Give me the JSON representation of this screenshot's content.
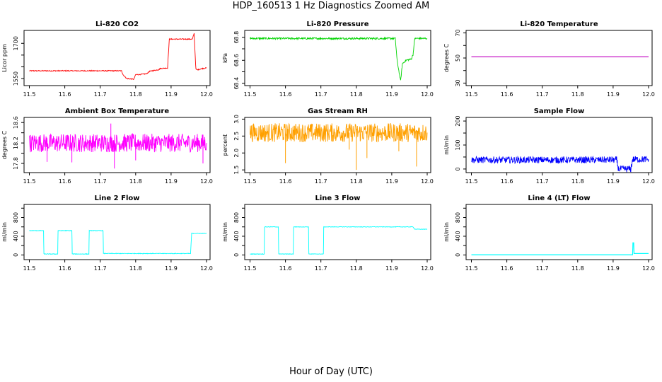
{
  "title": "HDP_160513  1 Hz Diagnostics Zoomed AM",
  "xlabel": "Hour of Day (UTC)",
  "chart_data": [
    {
      "type": "line",
      "title": "Li-820 CO2",
      "ylabel": "Licor ppm",
      "color": "#ff0000",
      "xlim": [
        11.485,
        12.01
      ],
      "ylim": [
        1520,
        1755
      ],
      "xticks": [
        11.5,
        11.6,
        11.7,
        11.8,
        11.9,
        12.0
      ],
      "xtick_labels": [
        "11.5",
        "11.6",
        "11.7",
        "11.8",
        "11.9",
        "12.0"
      ],
      "yticks": [
        1550,
        1600,
        1650,
        1700
      ],
      "ytick_labels": [
        "1550",
        "",
        "",
        "1700"
      ],
      "noise": 2,
      "series": [
        {
          "name": "CO2",
          "x": [
            11.5,
            11.76,
            11.765,
            11.775,
            11.795,
            11.8,
            11.81,
            11.83,
            11.84,
            11.865,
            11.87,
            11.89,
            11.895,
            11.96,
            11.965,
            11.97,
            11.975,
            11.985,
            12.0
          ],
          "y": [
            1583,
            1583,
            1565,
            1550,
            1547,
            1567,
            1567,
            1570,
            1581,
            1588,
            1593,
            1595,
            1718,
            1718,
            1742,
            1590,
            1587,
            1592,
            1595
          ]
        }
      ]
    },
    {
      "type": "line",
      "title": "Li-820 Pressure",
      "ylabel": "kPa",
      "color": "#00d400",
      "xlim": [
        11.485,
        12.01
      ],
      "ylim": [
        68.38,
        68.86
      ],
      "xticks": [
        11.5,
        11.6,
        11.7,
        11.8,
        11.9,
        12.0
      ],
      "xtick_labels": [
        "11.5",
        "11.6",
        "11.7",
        "11.8",
        "11.9",
        "12.0"
      ],
      "yticks": [
        68.4,
        68.6,
        68.8
      ],
      "ytick_labels": [
        "68.4",
        "68.6",
        "68.8"
      ],
      "minor_yticks": [
        68.5,
        68.7
      ],
      "noise": 0.008,
      "series": [
        {
          "name": "Pressure",
          "x": [
            11.5,
            11.91,
            11.915,
            11.925,
            11.93,
            11.94,
            11.955,
            11.96,
            11.965,
            12.0
          ],
          "y": [
            68.79,
            68.79,
            68.6,
            68.42,
            68.57,
            68.6,
            68.61,
            68.65,
            68.79,
            68.79
          ]
        }
      ]
    },
    {
      "type": "line",
      "title": "Li-820 Temperature",
      "ylabel": "degrees C",
      "color": "#c000c0",
      "xlim": [
        11.485,
        12.01
      ],
      "ylim": [
        28,
        72
      ],
      "xticks": [
        11.5,
        11.6,
        11.7,
        11.8,
        11.9,
        12.0
      ],
      "xtick_labels": [
        "11.5",
        "11.6",
        "11.7",
        "11.8",
        "11.9",
        "12.0"
      ],
      "yticks": [
        30,
        50,
        70
      ],
      "ytick_labels": [
        "30",
        "50",
        "70"
      ],
      "minor_yticks": [
        40,
        60
      ],
      "noise": 0,
      "series": [
        {
          "name": "Temperature",
          "x": [
            11.5,
            12.0
          ],
          "y": [
            51,
            51
          ]
        }
      ]
    },
    {
      "type": "line",
      "title": "Ambient Box Temperature",
      "ylabel": "degrees C",
      "color": "#ff00ff",
      "xlim": [
        11.485,
        12.01
      ],
      "ylim": [
        17.62,
        18.7
      ],
      "xticks": [
        11.5,
        11.6,
        11.7,
        11.8,
        11.9,
        12.0
      ],
      "xtick_labels": [
        "11.5",
        "11.6",
        "11.7",
        "11.8",
        "11.9",
        "12.0"
      ],
      "yticks": [
        17.8,
        18.2,
        18.6
      ],
      "ytick_labels": [
        "17.8",
        "18.2",
        "18.6"
      ],
      "minor_yticks": [
        18.0,
        18.4
      ],
      "noise": 0.18,
      "spikes": [
        [
          11.55,
          17.83
        ],
        [
          11.62,
          17.82
        ],
        [
          11.74,
          17.7
        ],
        [
          11.8,
          17.86
        ],
        [
          11.99,
          17.8
        ],
        [
          11.73,
          18.58
        ]
      ],
      "series": [
        {
          "name": "Box Temp",
          "x": [
            11.5,
            12.0
          ],
          "y": [
            18.2,
            18.2
          ]
        }
      ]
    },
    {
      "type": "line",
      "title": "Gas Stream RH",
      "ylabel": "percent",
      "color": "#ffa000",
      "xlim": [
        11.485,
        12.01
      ],
      "ylim": [
        1.42,
        3.05
      ],
      "xticks": [
        11.5,
        11.6,
        11.7,
        11.8,
        11.9,
        12.0
      ],
      "xtick_labels": [
        "11.5",
        "11.6",
        "11.7",
        "11.8",
        "11.9",
        "12.0"
      ],
      "yticks": [
        1.5,
        2.0,
        2.5,
        3.0
      ],
      "ytick_labels": [
        "1.5",
        "2.0",
        "2.5",
        "3.0"
      ],
      "noise": 0.28,
      "spikes": [
        [
          11.6,
          1.7
        ],
        [
          11.8,
          1.5
        ],
        [
          11.83,
          1.85
        ],
        [
          11.97,
          1.6
        ],
        [
          11.78,
          2.1
        ],
        [
          11.92,
          2.05
        ]
      ],
      "series": [
        {
          "name": "RH",
          "x": [
            11.5,
            12.0
          ],
          "y": [
            2.6,
            2.6
          ]
        }
      ]
    },
    {
      "type": "line",
      "title": "Sample Flow",
      "ylabel": "ml/min",
      "color": "#0000ff",
      "xlim": [
        11.485,
        12.01
      ],
      "ylim": [
        -15,
        215
      ],
      "xticks": [
        11.5,
        11.6,
        11.7,
        11.8,
        11.9,
        12.0
      ],
      "xtick_labels": [
        "11.5",
        "11.6",
        "11.7",
        "11.8",
        "11.9",
        "12.0"
      ],
      "yticks": [
        0,
        100,
        200
      ],
      "ytick_labels": [
        "0",
        "100",
        "200"
      ],
      "minor_yticks": [
        50,
        150
      ],
      "noise": 14,
      "series": [
        {
          "name": "Sample Flow",
          "x": [
            11.5,
            11.91,
            11.915,
            11.95,
            11.955,
            12.0
          ],
          "y": [
            38,
            38,
            0,
            0,
            40,
            40
          ]
        }
      ]
    },
    {
      "type": "line",
      "title": "Line 2 Flow",
      "ylabel": "ml/min",
      "color": "#00ffff",
      "xlim": [
        11.485,
        12.01
      ],
      "ylim": [
        -100,
        1080
      ],
      "xticks": [
        11.5,
        11.6,
        11.7,
        11.8,
        11.9,
        12.0
      ],
      "xtick_labels": [
        "11.5",
        "11.6",
        "11.7",
        "11.8",
        "11.9",
        "12.0"
      ],
      "yticks": [
        0,
        400,
        800
      ],
      "ytick_labels": [
        "0",
        "400",
        "800"
      ],
      "minor_yticks": [
        200,
        600,
        1000
      ],
      "noise": 6,
      "series": [
        {
          "name": "Line 2",
          "x": [
            11.5,
            11.54,
            11.541,
            11.58,
            11.581,
            11.62,
            11.621,
            11.668,
            11.669,
            11.708,
            11.709,
            11.955,
            11.958,
            12.0
          ],
          "y": [
            520,
            520,
            20,
            20,
            520,
            520,
            20,
            20,
            520,
            520,
            30,
            30,
            460,
            460
          ]
        }
      ]
    },
    {
      "type": "line",
      "title": "Line 3 Flow",
      "ylabel": "ml/min",
      "color": "#00ffff",
      "xlim": [
        11.485,
        12.01
      ],
      "ylim": [
        -100,
        1080
      ],
      "xticks": [
        11.5,
        11.6,
        11.7,
        11.8,
        11.9,
        12.0
      ],
      "xtick_labels": [
        "11.5",
        "11.6",
        "11.7",
        "11.8",
        "11.9",
        "12.0"
      ],
      "yticks": [
        0,
        400,
        800
      ],
      "ytick_labels": [
        "0",
        "400",
        "800"
      ],
      "minor_yticks": [
        200,
        600,
        1000
      ],
      "noise": 5,
      "series": [
        {
          "name": "Line 3",
          "x": [
            11.5,
            11.54,
            11.541,
            11.58,
            11.581,
            11.622,
            11.623,
            11.665,
            11.666,
            11.707,
            11.708,
            11.96,
            11.965,
            12.0
          ],
          "y": [
            20,
            20,
            600,
            600,
            20,
            20,
            600,
            600,
            20,
            20,
            600,
            600,
            550,
            550
          ]
        }
      ]
    },
    {
      "type": "line",
      "title": "Line 4 (LT) Flow",
      "ylabel": "ml/min",
      "color": "#00ffff",
      "xlim": [
        11.485,
        12.01
      ],
      "ylim": [
        -100,
        1080
      ],
      "xticks": [
        11.5,
        11.6,
        11.7,
        11.8,
        11.9,
        12.0
      ],
      "xtick_labels": [
        "11.5",
        "11.6",
        "11.7",
        "11.8",
        "11.9",
        "12.0"
      ],
      "yticks": [
        0,
        400,
        800
      ],
      "ytick_labels": [
        "0",
        "400",
        "800"
      ],
      "minor_yticks": [
        200,
        600,
        1000
      ],
      "noise": 0,
      "series": [
        {
          "name": "Line 4",
          "x": [
            11.5,
            11.955,
            11.956,
            11.958,
            11.959,
            12.0
          ],
          "y": [
            5,
            5,
            260,
            260,
            30,
            30
          ]
        }
      ]
    }
  ]
}
